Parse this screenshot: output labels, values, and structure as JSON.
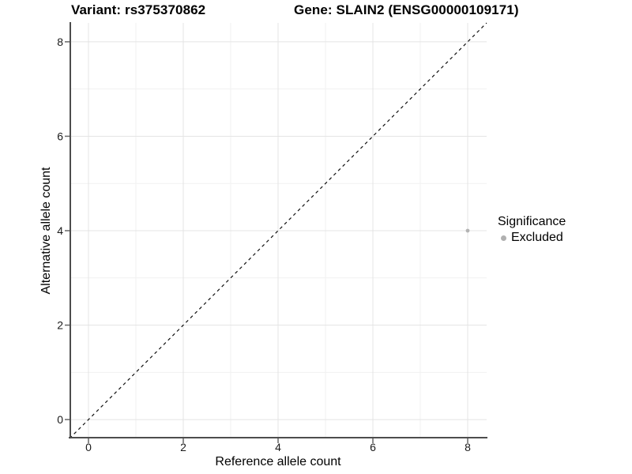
{
  "figure": {
    "title_left": "Variant: rs375370862",
    "title_right": "Gene: SLAIN2 (ENSG00000109171)"
  },
  "chart_data": {
    "type": "scatter",
    "title": "Variant: rs375370862   Gene: SLAIN2 (ENSG00000109171)",
    "xlabel": "Reference allele count",
    "ylabel": "Alternative allele count",
    "xlim": [
      -0.4,
      8.4
    ],
    "ylim": [
      -0.4,
      8.4
    ],
    "x_ticks": [
      0,
      2,
      4,
      6,
      8
    ],
    "y_ticks": [
      0,
      2,
      4,
      6,
      8
    ],
    "x_minor_ticks": [
      1,
      3,
      5,
      7
    ],
    "y_minor_ticks": [
      1,
      3,
      5,
      7
    ],
    "grid": "major and minor gridlines on white background",
    "points": [
      {
        "x": 8,
        "y": 4,
        "series": "Excluded"
      }
    ],
    "reference_line": {
      "kind": "identity y=x",
      "style": "dashed",
      "from": [
        -0.4,
        -0.4
      ],
      "to": [
        8.4,
        8.4
      ]
    },
    "legend": {
      "title": "Significance",
      "position": "right",
      "items": [
        {
          "label": "Excluded",
          "color": "#b0b0b0"
        }
      ]
    },
    "style": {
      "point_color": "#b3b3b3",
      "ref_line_color": "#111111",
      "grid_major_color": "#e4e4e4",
      "grid_minor_color": "#f1f1f1",
      "axis_line_color": "#4d4d4d",
      "tick_color": "#666666",
      "tick_label_color": "#1a1a1a",
      "background": "#ffffff"
    }
  }
}
